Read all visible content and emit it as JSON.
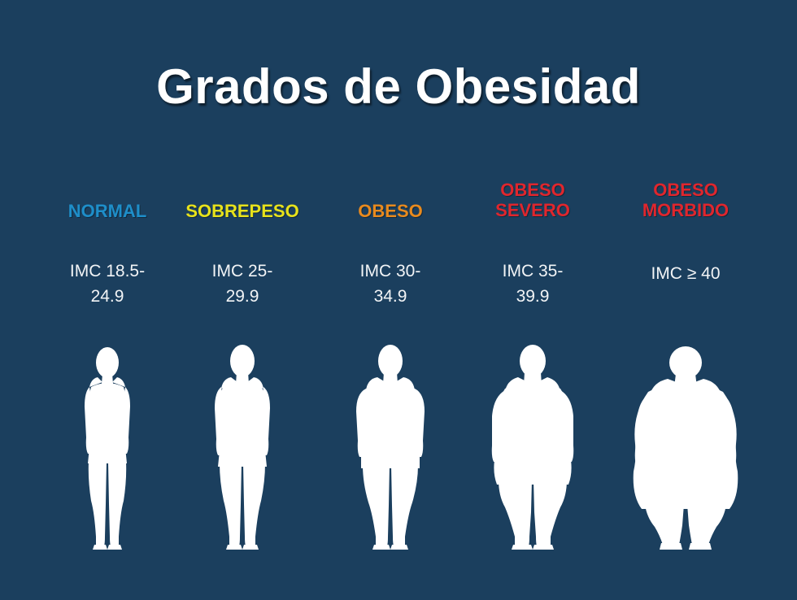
{
  "title": "Grados de Obesidad",
  "colors": {
    "background": "#1b3f5e",
    "silhouette": "#ffffff"
  },
  "categories": [
    {
      "label": [
        "NORMAL"
      ],
      "color": "#1e8ec9",
      "imc": [
        "IMC 18.5-",
        "24.9"
      ],
      "icon": "normal-silhouette-icon"
    },
    {
      "label": [
        "SOBREPESO"
      ],
      "color": "#e7e21b",
      "imc": [
        "IMC 25-",
        "29.9"
      ],
      "icon": "overweight-silhouette-icon"
    },
    {
      "label": [
        "OBESO"
      ],
      "color": "#e88a1e",
      "imc": [
        "IMC 30-",
        "34.9"
      ],
      "icon": "obese-silhouette-icon"
    },
    {
      "label": [
        "OBESO",
        "SEVERO"
      ],
      "color": "#e0262d",
      "imc": [
        "IMC 35-",
        "39.9"
      ],
      "icon": "severe-obese-silhouette-icon"
    },
    {
      "label": [
        "OBESO",
        "MORBIDO"
      ],
      "color": "#e0262d",
      "imc": [
        "IMC ≥ 40"
      ],
      "icon": "morbid-obese-silhouette-icon"
    }
  ]
}
